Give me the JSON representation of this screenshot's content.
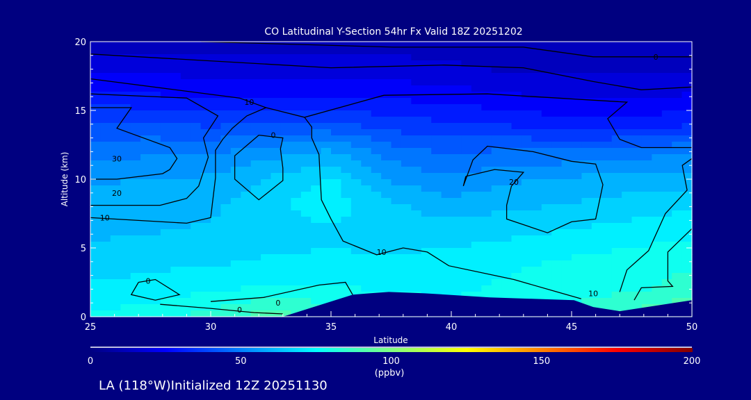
{
  "chart_data": {
    "type": "heatmap",
    "title": "CO Latitudinal Y-Section 54hr  Fx Valid 18Z 20251202",
    "xlabel": "Latitude",
    "ylabel": "Altitude (km)",
    "xlim": [
      25,
      50
    ],
    "ylim": [
      0,
      20
    ],
    "xticks": [
      "25",
      "30",
      "35",
      "40",
      "45",
      "50"
    ],
    "yticks": [
      "0",
      "5",
      "10",
      "15",
      "20"
    ],
    "colorbar": {
      "range": [
        0,
        200
      ],
      "ticks": [
        "0",
        "50",
        "100",
        "150",
        "200"
      ],
      "unit": "(ppbv)",
      "stops": [
        [
          0,
          "#000080"
        ],
        [
          25,
          "#0000ff"
        ],
        [
          50,
          "#0080ff"
        ],
        [
          75,
          "#00ffff"
        ],
        [
          100,
          "#80ff80"
        ],
        [
          125,
          "#ffff00"
        ],
        [
          150,
          "#ff8000"
        ],
        [
          175,
          "#ff0000"
        ],
        [
          200,
          "#800000"
        ]
      ]
    },
    "grid_lat": [
      25,
      27.5,
      30,
      32.5,
      35,
      37.5,
      40,
      42.5,
      45,
      47.5,
      50
    ],
    "grid_alt": [
      0,
      2,
      4,
      6,
      8,
      10,
      12,
      14,
      16,
      18,
      20
    ],
    "values": [
      [
        76,
        78,
        84,
        90,
        86,
        80,
        78,
        80,
        84,
        90,
        94
      ],
      [
        70,
        72,
        74,
        76,
        76,
        74,
        74,
        76,
        78,
        80,
        84
      ],
      [
        66,
        67,
        68,
        70,
        70,
        70,
        72,
        74,
        76,
        78,
        80
      ],
      [
        62,
        63,
        64,
        66,
        68,
        66,
        66,
        68,
        70,
        72,
        74
      ],
      [
        60,
        61,
        62,
        68,
        72,
        64,
        60,
        62,
        64,
        66,
        68
      ],
      [
        56,
        57,
        58,
        64,
        70,
        56,
        52,
        56,
        58,
        60,
        60
      ],
      [
        48,
        50,
        50,
        54,
        58,
        48,
        44,
        46,
        46,
        48,
        50
      ],
      [
        40,
        40,
        38,
        40,
        40,
        36,
        34,
        32,
        30,
        30,
        32
      ],
      [
        30,
        28,
        26,
        26,
        26,
        26,
        24,
        22,
        20,
        20,
        22
      ],
      [
        20,
        20,
        18,
        18,
        18,
        18,
        16,
        14,
        14,
        14,
        14
      ],
      [
        12,
        12,
        12,
        12,
        12,
        12,
        12,
        12,
        12,
        12,
        12
      ]
    ],
    "terrain": [
      [
        33,
        0
      ],
      [
        35.9,
        1.6
      ],
      [
        36.6,
        1.7
      ],
      [
        37.4,
        1.8
      ],
      [
        38.9,
        1.7
      ],
      [
        41.6,
        1.4
      ],
      [
        45.1,
        1.2
      ],
      [
        45.9,
        0.7
      ],
      [
        47,
        0.4
      ],
      [
        50,
        1.2
      ],
      [
        50,
        0
      ]
    ],
    "contours": [
      {
        "label": "0",
        "label_at": [
          48.5,
          18.9
        ],
        "points": [
          [
            29.6,
            20
          ],
          [
            37.6,
            19.6
          ],
          [
            43,
            19.6
          ],
          [
            45.9,
            18.9
          ],
          [
            50,
            18.9
          ]
        ]
      },
      {
        "label": "",
        "label_at": null,
        "points": [
          [
            25,
            19.1
          ],
          [
            35,
            18.1
          ],
          [
            39.7,
            18.3
          ],
          [
            43,
            18.1
          ],
          [
            45.9,
            17.1
          ],
          [
            47.9,
            16.5
          ],
          [
            50,
            16.7
          ]
        ]
      },
      {
        "label": "10",
        "label_at": [
          31.6,
          15.6
        ],
        "points": [
          [
            25,
            17.3
          ],
          [
            31.2,
            15.9
          ],
          [
            32.3,
            15.2
          ],
          [
            33.9,
            14.5
          ],
          [
            37.2,
            16.1
          ],
          [
            41.5,
            16.2
          ],
          [
            47.3,
            15.6
          ],
          [
            46.5,
            14.4
          ],
          [
            47,
            12.9
          ],
          [
            47.9,
            12.3
          ],
          [
            50,
            12.3
          ]
        ]
      },
      {
        "label": "10",
        "label_at": [
          25.6,
          7.2
        ],
        "points": [
          [
            25,
            7.2
          ],
          [
            29,
            6.8
          ],
          [
            30,
            7.2
          ],
          [
            30.2,
            10.1
          ],
          [
            30.2,
            12.1
          ],
          [
            30.5,
            12.9
          ],
          [
            30.9,
            13.7
          ],
          [
            31.5,
            14.6
          ],
          [
            32.3,
            15.2
          ]
        ]
      },
      {
        "label": "20",
        "label_at": [
          26.1,
          9.0
        ],
        "points": [
          [
            25,
            16.2
          ],
          [
            29,
            15.9
          ],
          [
            30.3,
            14.6
          ],
          [
            29.7,
            13
          ],
          [
            29.9,
            11.6
          ],
          [
            29.5,
            9.5
          ],
          [
            29,
            8.6
          ],
          [
            27.9,
            8.1
          ],
          [
            25,
            8.1
          ]
        ]
      },
      {
        "label": "30",
        "label_at": [
          26.1,
          11.5
        ],
        "points": [
          [
            25,
            15.2
          ],
          [
            26.7,
            15.2
          ],
          [
            26.1,
            13.7
          ],
          [
            28.3,
            12.3
          ],
          [
            28.6,
            11.5
          ],
          [
            28.3,
            10.7
          ],
          [
            28,
            10.4
          ],
          [
            26.1,
            10
          ],
          [
            25,
            10
          ]
        ]
      },
      {
        "label": "0",
        "label_at": [
          32.6,
          13.2
        ],
        "points": [
          [
            32,
            13.2
          ],
          [
            33,
            13
          ],
          [
            32.9,
            12.2
          ],
          [
            33,
            10.8
          ],
          [
            33,
            9.9
          ],
          [
            32,
            8.5
          ],
          [
            31,
            10
          ],
          [
            31,
            11.7
          ],
          [
            32,
            13.2
          ]
        ]
      },
      {
        "label": "10",
        "label_at": [
          37.1,
          4.7
        ],
        "points": [
          [
            33.9,
            14.5
          ],
          [
            34.2,
            13.8
          ],
          [
            34.2,
            13
          ],
          [
            34.5,
            11.8
          ],
          [
            34.6,
            8.5
          ],
          [
            35,
            7.1
          ],
          [
            35.5,
            5.5
          ],
          [
            36.9,
            4.5
          ],
          [
            38,
            5
          ],
          [
            39,
            4.7
          ],
          [
            39.9,
            3.7
          ],
          [
            42.6,
            2.7
          ],
          [
            44.4,
            1.8
          ],
          [
            45.4,
            1.3
          ]
        ]
      },
      {
        "label": "20",
        "label_at": [
          42.6,
          9.8
        ],
        "points": [
          [
            40.6,
            10.2
          ],
          [
            41.8,
            10.7
          ],
          [
            43,
            10.5
          ],
          [
            42.5,
            9.5
          ],
          [
            42.3,
            8.1
          ],
          [
            42.3,
            7.1
          ],
          [
            44,
            6.1
          ],
          [
            45,
            6.9
          ],
          [
            46,
            7.1
          ],
          [
            46.3,
            9.6
          ],
          [
            46,
            11.1
          ],
          [
            45,
            11.3
          ],
          [
            43.4,
            12
          ],
          [
            41.5,
            12.4
          ],
          [
            40.9,
            11.4
          ],
          [
            40.5,
            9.5
          ],
          [
            40.6,
            10.2
          ]
        ]
      },
      {
        "label": "10",
        "label_at": [
          45.9,
          1.7
        ],
        "points": [
          [
            50,
            11.5
          ],
          [
            49.6,
            11
          ],
          [
            49.8,
            9.2
          ],
          [
            48.9,
            7.5
          ],
          [
            48.2,
            4.8
          ],
          [
            47.3,
            3.4
          ],
          [
            47,
            1.8
          ]
        ]
      },
      {
        "label": "",
        "label_at": null,
        "points": [
          [
            50,
            6.4
          ],
          [
            49,
            4.7
          ],
          [
            49,
            2.6
          ],
          [
            49.2,
            2.2
          ],
          [
            47.9,
            2.1
          ],
          [
            47.6,
            1.2
          ]
        ]
      },
      {
        "label": "0",
        "label_at": [
          27.4,
          2.6
        ],
        "points": [
          [
            27,
            2.5
          ],
          [
            27.7,
            2.7
          ],
          [
            28.7,
            1.6
          ],
          [
            27.7,
            1.2
          ],
          [
            26.7,
            1.6
          ],
          [
            27,
            2.5
          ]
        ]
      },
      {
        "label": "0",
        "label_at": [
          31.2,
          0.5
        ],
        "points": [
          [
            27.9,
            0.9
          ],
          [
            30,
            0.6
          ],
          [
            31.8,
            0.3
          ],
          [
            33,
            0.2
          ]
        ]
      },
      {
        "label": "0",
        "label_at": [
          32.8,
          1.0
        ],
        "points": [
          [
            30,
            1.1
          ],
          [
            32.2,
            1.4
          ],
          [
            34.5,
            2.3
          ],
          [
            35.6,
            2.5
          ],
          [
            35.9,
            1.6
          ]
        ]
      }
    ]
  },
  "footer": "LA (118°W)Initialized 12Z 20251130"
}
